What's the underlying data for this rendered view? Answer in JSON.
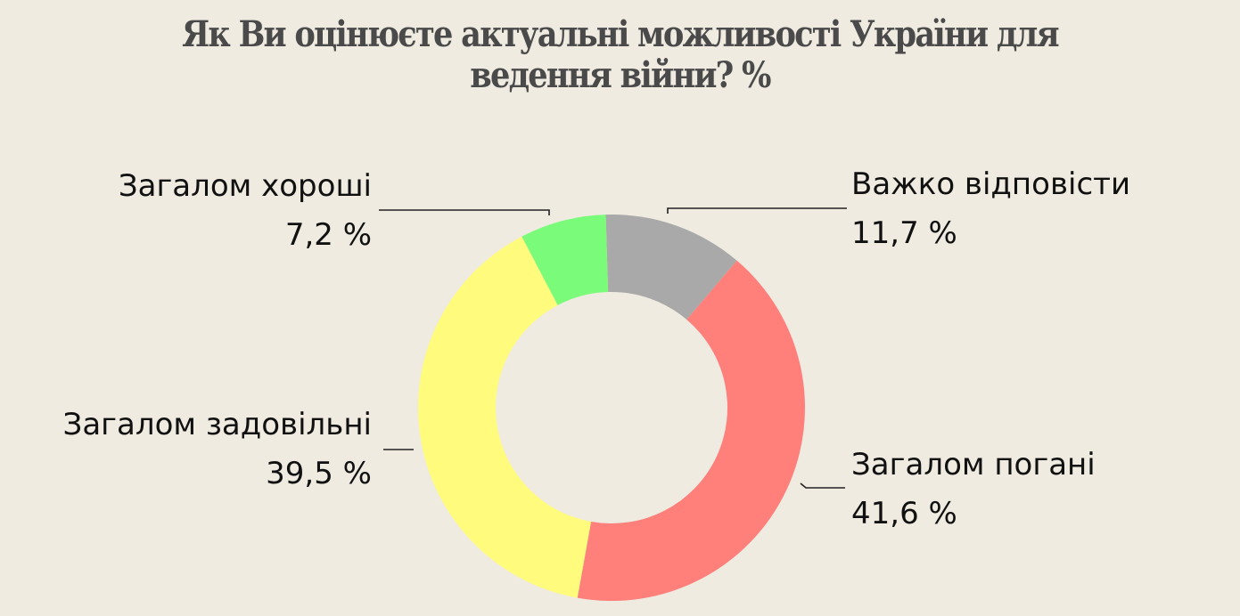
{
  "title": {
    "line1": "Як Ви оцінюєте актуальні можливості України для",
    "line2": "ведення війни? %"
  },
  "colors": {
    "background": "#efebe1",
    "title": "#4a4a4a",
    "difficult": "#a9a9a9",
    "bad": "#ff7f7a",
    "satisfactory": "#fffb7c",
    "good": "#7afc7a"
  },
  "labels": {
    "good": {
      "name": "Загалом хороші",
      "value": "7,2 %"
    },
    "difficult": {
      "name": "Важко відповісти",
      "value": "11,7 %"
    },
    "satisfactory": {
      "name": "Загалом задовільні",
      "value": "39,5 %"
    },
    "bad": {
      "name": "Загалом погані",
      "value": "41,6 %"
    }
  },
  "chart_data": {
    "type": "pie",
    "subtype": "donut",
    "title": "Як Ви оцінюєте актуальні можливості України для ведення війни? %",
    "categories": [
      "Важко відповісти",
      "Загалом погані",
      "Загалом задовільні",
      "Загалом хороші"
    ],
    "values": [
      11.7,
      41.6,
      39.5,
      7.2
    ],
    "colors": [
      "#a9a9a9",
      "#ff7f7a",
      "#fffb7c",
      "#7afc7a"
    ],
    "unit": "%",
    "start_angle": "top (12 o'clock), clockwise",
    "legend": "none (direct labels with leader lines)"
  }
}
